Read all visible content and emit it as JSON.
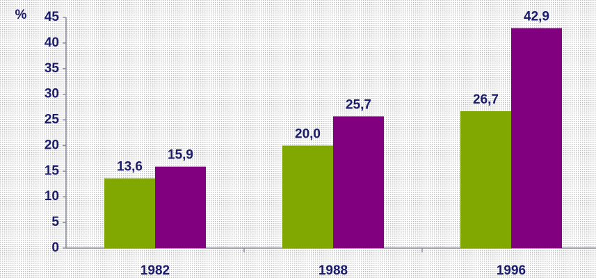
{
  "chart_data": {
    "type": "bar",
    "ylabel": "%",
    "categories": [
      "1982",
      "1988",
      "1996"
    ],
    "series": [
      {
        "color": "#80a800",
        "values": [
          13.6,
          20.0,
          26.7
        ],
        "value_labels": [
          "13,6",
          "20,0",
          "26,7"
        ]
      },
      {
        "color": "#800080",
        "values": [
          15.9,
          25.7,
          42.9
        ],
        "value_labels": [
          "15,9",
          "25,7",
          "42,9"
        ]
      }
    ],
    "ylim": [
      0,
      45
    ],
    "yticks": [
      0,
      5,
      10,
      15,
      20,
      25,
      30,
      35,
      40,
      45
    ]
  }
}
